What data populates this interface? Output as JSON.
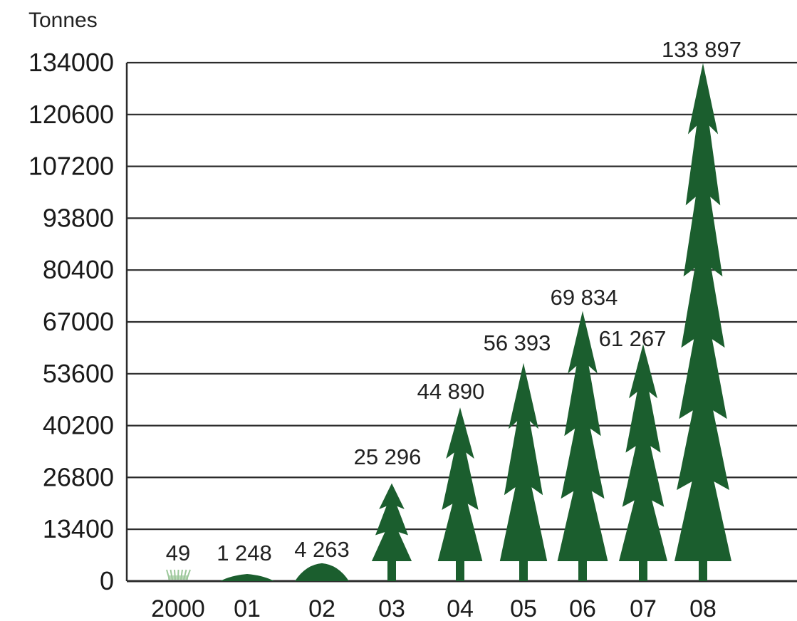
{
  "chart_data": {
    "type": "bar",
    "ylabel": "Tonnes",
    "categories": [
      "2000",
      "01",
      "02",
      "03",
      "04",
      "05",
      "06",
      "07",
      "08"
    ],
    "values": [
      49,
      1248,
      4263,
      25296,
      44890,
      56393,
      69834,
      61267,
      133897
    ],
    "data_labels": [
      "49",
      "1 248",
      "4 263",
      "25 296",
      "44 890",
      "56 393",
      "69 834",
      "61 267",
      "133 897"
    ],
    "y_ticks": [
      "0",
      "13400",
      "26800",
      "40200",
      "53600",
      "67000",
      "80400",
      "93800",
      "107200",
      "120600",
      "134000"
    ],
    "ylim": [
      0,
      134000
    ],
    "grid": true,
    "legend": "none",
    "mark_shape": "fir-tree",
    "colors": {
      "tree": "#1b5e2e",
      "seedling": "#9cc79a",
      "grid": "#2b2b2b",
      "text": "#1a1a1a"
    }
  }
}
